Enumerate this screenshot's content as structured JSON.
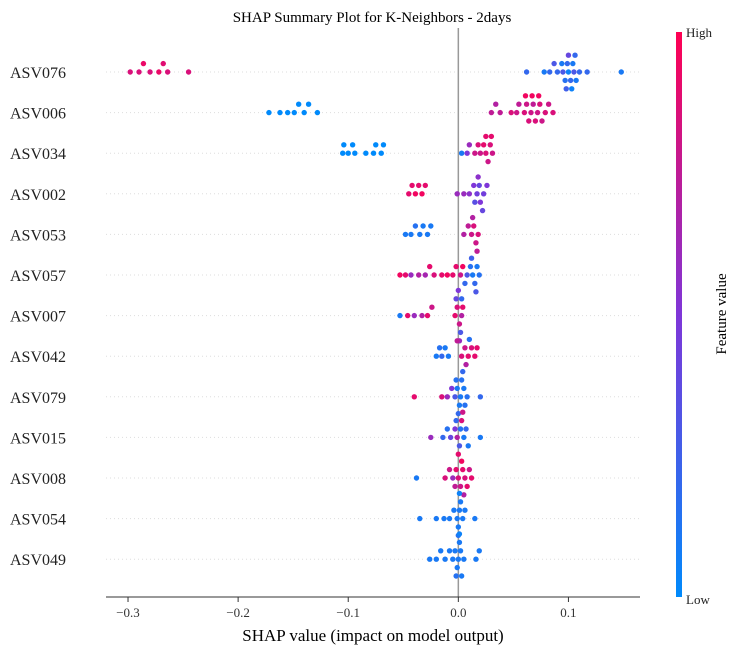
{
  "chart_data": {
    "type": "scatter",
    "title": "SHAP Summary Plot for K-Neighbors - 2days",
    "xlabel": "SHAP value (impact on model output)",
    "xlim": [
      -0.32,
      0.165
    ],
    "xticks": [
      -0.3,
      -0.2,
      -0.1,
      0.0,
      0.1
    ],
    "xtick_labels": [
      "−0.3",
      "−0.2",
      "−0.1",
      "0.0",
      "0.1"
    ],
    "colorbar": {
      "label": "Feature value",
      "high": "High",
      "low": "Low",
      "low_color": "#008afb",
      "mid_color": "#7f36d8",
      "high_color": "#ff0052"
    },
    "categories": [
      "ASV076",
      "ASV006",
      "ASV034",
      "ASV002",
      "ASV053",
      "ASV057",
      "ASV007",
      "ASV042",
      "ASV079",
      "ASV015",
      "ASV008",
      "ASV054",
      "ASV049"
    ],
    "series": [
      {
        "feature": "ASV076",
        "points": [
          [
            -0.298,
            0.85
          ],
          [
            -0.29,
            0.85
          ],
          [
            -0.286,
            0.92
          ],
          [
            -0.28,
            0.85
          ],
          [
            -0.272,
            0.92
          ],
          [
            -0.268,
            0.88
          ],
          [
            -0.264,
            0.85
          ],
          [
            -0.245,
            0.85
          ],
          [
            0.062,
            0.2
          ],
          [
            0.078,
            0.1
          ],
          [
            0.083,
            0.2
          ],
          [
            0.087,
            0.3
          ],
          [
            0.09,
            0.2
          ],
          [
            0.094,
            0.1
          ],
          [
            0.095,
            0.3
          ],
          [
            0.097,
            0.15
          ],
          [
            0.099,
            0.2
          ],
          [
            0.1,
            0.05
          ],
          [
            0.1,
            0.4
          ],
          [
            0.102,
            0.2
          ],
          [
            0.104,
            0.1
          ],
          [
            0.105,
            0.3
          ],
          [
            0.106,
            0.2
          ],
          [
            0.107,
            0.1
          ],
          [
            0.11,
            0.2
          ],
          [
            0.117,
            0.2
          ],
          [
            0.148,
            0.1
          ],
          [
            0.098,
            0.25
          ],
          [
            0.103,
            0.05
          ]
        ]
      },
      {
        "feature": "ASV006",
        "points": [
          [
            -0.172,
            0.0
          ],
          [
            -0.162,
            0.0
          ],
          [
            -0.155,
            0.0
          ],
          [
            -0.149,
            0.0
          ],
          [
            -0.145,
            0.0
          ],
          [
            -0.14,
            0.0
          ],
          [
            -0.136,
            0.0
          ],
          [
            -0.128,
            0.0
          ],
          [
            0.03,
            0.75
          ],
          [
            0.034,
            0.7
          ],
          [
            0.038,
            0.75
          ],
          [
            0.048,
            0.85
          ],
          [
            0.053,
            0.8
          ],
          [
            0.055,
            0.75
          ],
          [
            0.06,
            0.85
          ],
          [
            0.062,
            0.8
          ],
          [
            0.064,
            0.85
          ],
          [
            0.066,
            0.8
          ],
          [
            0.068,
            0.75
          ],
          [
            0.07,
            0.85
          ],
          [
            0.072,
            0.8
          ],
          [
            0.074,
            0.85
          ],
          [
            0.076,
            0.8
          ],
          [
            0.079,
            0.85
          ],
          [
            0.082,
            0.8
          ],
          [
            0.086,
            0.85
          ],
          [
            0.061,
            0.95
          ],
          [
            0.067,
            0.95
          ],
          [
            0.073,
            0.95
          ]
        ]
      },
      {
        "feature": "ASV034",
        "points": [
          [
            -0.105,
            0.0
          ],
          [
            -0.104,
            0.0
          ],
          [
            -0.1,
            0.0
          ],
          [
            -0.096,
            0.0
          ],
          [
            -0.094,
            0.0
          ],
          [
            -0.084,
            0.0
          ],
          [
            -0.077,
            0.0
          ],
          [
            -0.075,
            0.0
          ],
          [
            -0.07,
            0.0
          ],
          [
            -0.068,
            0.0
          ],
          [
            0.003,
            0.1
          ],
          [
            0.008,
            0.5
          ],
          [
            0.01,
            0.6
          ],
          [
            0.015,
            0.8
          ],
          [
            0.018,
            0.85
          ],
          [
            0.02,
            0.8
          ],
          [
            0.023,
            0.9
          ],
          [
            0.025,
            0.85
          ],
          [
            0.027,
            0.8
          ],
          [
            0.029,
            0.85
          ],
          [
            0.031,
            0.8
          ],
          [
            0.025,
            0.9
          ],
          [
            0.03,
            0.9
          ]
        ]
      },
      {
        "feature": "ASV002",
        "points": [
          [
            -0.045,
            0.9
          ],
          [
            -0.042,
            0.9
          ],
          [
            -0.039,
            0.95
          ],
          [
            -0.036,
            0.9
          ],
          [
            -0.033,
            0.95
          ],
          [
            -0.03,
            0.9
          ],
          [
            -0.001,
            0.6
          ],
          [
            0.005,
            0.6
          ],
          [
            0.01,
            0.55
          ],
          [
            0.014,
            0.5
          ],
          [
            0.017,
            0.45
          ],
          [
            0.019,
            0.4
          ],
          [
            0.02,
            0.5
          ],
          [
            0.023,
            0.45
          ],
          [
            0.026,
            0.5
          ],
          [
            0.015,
            0.35
          ],
          [
            0.018,
            0.55
          ],
          [
            0.022,
            0.4
          ]
        ]
      },
      {
        "feature": "ASV053",
        "points": [
          [
            -0.048,
            0.1
          ],
          [
            -0.043,
            0.1
          ],
          [
            -0.039,
            0.15
          ],
          [
            -0.035,
            0.1
          ],
          [
            -0.032,
            0.1
          ],
          [
            -0.028,
            0.1
          ],
          [
            -0.025,
            0.1
          ],
          [
            0.005,
            0.7
          ],
          [
            0.009,
            0.75
          ],
          [
            0.012,
            0.8
          ],
          [
            0.014,
            0.85
          ],
          [
            0.016,
            0.8
          ],
          [
            0.018,
            0.85
          ],
          [
            0.013,
            0.7
          ],
          [
            0.017,
            0.75
          ]
        ]
      },
      {
        "feature": "ASV057",
        "points": [
          [
            -0.053,
            0.95
          ],
          [
            -0.048,
            0.9
          ],
          [
            -0.043,
            0.6
          ],
          [
            -0.036,
            0.7
          ],
          [
            -0.03,
            0.65
          ],
          [
            -0.026,
            0.9
          ],
          [
            -0.022,
            0.85
          ],
          [
            -0.015,
            0.9
          ],
          [
            -0.01,
            0.95
          ],
          [
            -0.005,
            0.9
          ],
          [
            -0.002,
            0.9
          ],
          [
            0.002,
            0.8
          ],
          [
            0.004,
            0.95
          ],
          [
            0.006,
            0.2
          ],
          [
            0.008,
            0.3
          ],
          [
            0.011,
            0.15
          ],
          [
            0.013,
            0.1
          ],
          [
            0.015,
            0.2
          ],
          [
            0.017,
            0.1
          ],
          [
            0.019,
            0.15
          ],
          [
            0.012,
            0.25
          ],
          [
            0.016,
            0.3
          ]
        ]
      },
      {
        "feature": "ASV007",
        "points": [
          [
            -0.053,
            0.1
          ],
          [
            -0.046,
            0.9
          ],
          [
            -0.04,
            0.6
          ],
          [
            -0.033,
            0.7
          ],
          [
            -0.028,
            0.9
          ],
          [
            -0.024,
            0.8
          ],
          [
            -0.003,
            0.9
          ],
          [
            -0.001,
            0.85
          ],
          [
            0.001,
            0.8
          ],
          [
            0.003,
            0.7
          ],
          [
            0.004,
            0.9
          ],
          [
            -0.002,
            0.4
          ],
          [
            0.002,
            0.3
          ],
          [
            0.0,
            0.5
          ],
          [
            0.001,
            0.6
          ],
          [
            0.003,
            0.2
          ],
          [
            -0.001,
            0.75
          ]
        ]
      },
      {
        "feature": "ASV042",
        "points": [
          [
            -0.02,
            0.1
          ],
          [
            -0.015,
            0.2
          ],
          [
            -0.012,
            0.1
          ],
          [
            -0.009,
            0.1
          ],
          [
            -0.017,
            0.15
          ],
          [
            0.003,
            0.85
          ],
          [
            0.006,
            0.8
          ],
          [
            0.009,
            0.9
          ],
          [
            0.012,
            0.85
          ],
          [
            0.015,
            0.9
          ],
          [
            0.017,
            0.9
          ],
          [
            0.007,
            0.7
          ],
          [
            0.01,
            0.15
          ]
        ]
      },
      {
        "feature": "ASV079",
        "points": [
          [
            -0.04,
            0.9
          ],
          [
            -0.015,
            0.85
          ],
          [
            -0.01,
            0.6
          ],
          [
            -0.006,
            0.5
          ],
          [
            -0.003,
            0.3
          ],
          [
            -0.001,
            0.1
          ],
          [
            0.001,
            0.1
          ],
          [
            0.002,
            0.1
          ],
          [
            0.003,
            0.15
          ],
          [
            0.005,
            0.1
          ],
          [
            0.008,
            0.15
          ],
          [
            0.02,
            0.2
          ],
          [
            0.0,
            0.2
          ],
          [
            0.004,
            0.2
          ],
          [
            -0.002,
            0.15
          ],
          [
            0.006,
            0.15
          ]
        ]
      },
      {
        "feature": "ASV015",
        "points": [
          [
            -0.025,
            0.6
          ],
          [
            -0.014,
            0.2
          ],
          [
            -0.01,
            0.15
          ],
          [
            -0.007,
            0.4
          ],
          [
            -0.003,
            0.5
          ],
          [
            -0.001,
            0.7
          ],
          [
            0.001,
            0.3
          ],
          [
            0.002,
            0.15
          ],
          [
            0.003,
            0.85
          ],
          [
            0.005,
            0.1
          ],
          [
            0.007,
            0.2
          ],
          [
            0.009,
            0.1
          ],
          [
            0.02,
            0.1
          ],
          [
            0.0,
            0.9
          ],
          [
            0.004,
            0.8
          ],
          [
            -0.002,
            0.2
          ]
        ]
      },
      {
        "feature": "ASV008",
        "points": [
          [
            -0.038,
            0.1
          ],
          [
            -0.012,
            0.85
          ],
          [
            -0.008,
            0.8
          ],
          [
            -0.005,
            0.6
          ],
          [
            -0.002,
            0.9
          ],
          [
            0.0,
            0.85
          ],
          [
            0.002,
            0.8
          ],
          [
            0.004,
            0.9
          ],
          [
            0.006,
            0.85
          ],
          [
            0.008,
            0.9
          ],
          [
            0.01,
            0.8
          ],
          [
            0.012,
            0.9
          ],
          [
            0.003,
            0.95
          ],
          [
            0.005,
            0.7
          ],
          [
            -0.003,
            0.75
          ]
        ]
      },
      {
        "feature": "ASV054",
        "points": [
          [
            -0.035,
            0.1
          ],
          [
            -0.02,
            0.1
          ],
          [
            -0.013,
            0.1
          ],
          [
            -0.008,
            0.1
          ],
          [
            -0.004,
            0.1
          ],
          [
            -0.001,
            0.1
          ],
          [
            0.0,
            0.1
          ],
          [
            0.001,
            0.1
          ],
          [
            0.002,
            0.1
          ],
          [
            0.004,
            0.1
          ],
          [
            0.006,
            0.1
          ],
          [
            0.015,
            0.1
          ],
          [
            0.0,
            0.15
          ],
          [
            0.001,
            0.05
          ]
        ]
      },
      {
        "feature": "ASV049",
        "points": [
          [
            -0.026,
            0.1
          ],
          [
            -0.02,
            0.1
          ],
          [
            -0.016,
            0.1
          ],
          [
            -0.012,
            0.1
          ],
          [
            -0.008,
            0.1
          ],
          [
            -0.005,
            0.1
          ],
          [
            -0.003,
            0.1
          ],
          [
            -0.001,
            0.1
          ],
          [
            0.0,
            0.1
          ],
          [
            0.001,
            0.1
          ],
          [
            0.002,
            0.1
          ],
          [
            0.003,
            0.1
          ],
          [
            0.005,
            0.1
          ],
          [
            0.016,
            0.1
          ],
          [
            0.019,
            0.1
          ],
          [
            -0.002,
            0.15
          ],
          [
            0.001,
            0.05
          ]
        ]
      }
    ]
  }
}
